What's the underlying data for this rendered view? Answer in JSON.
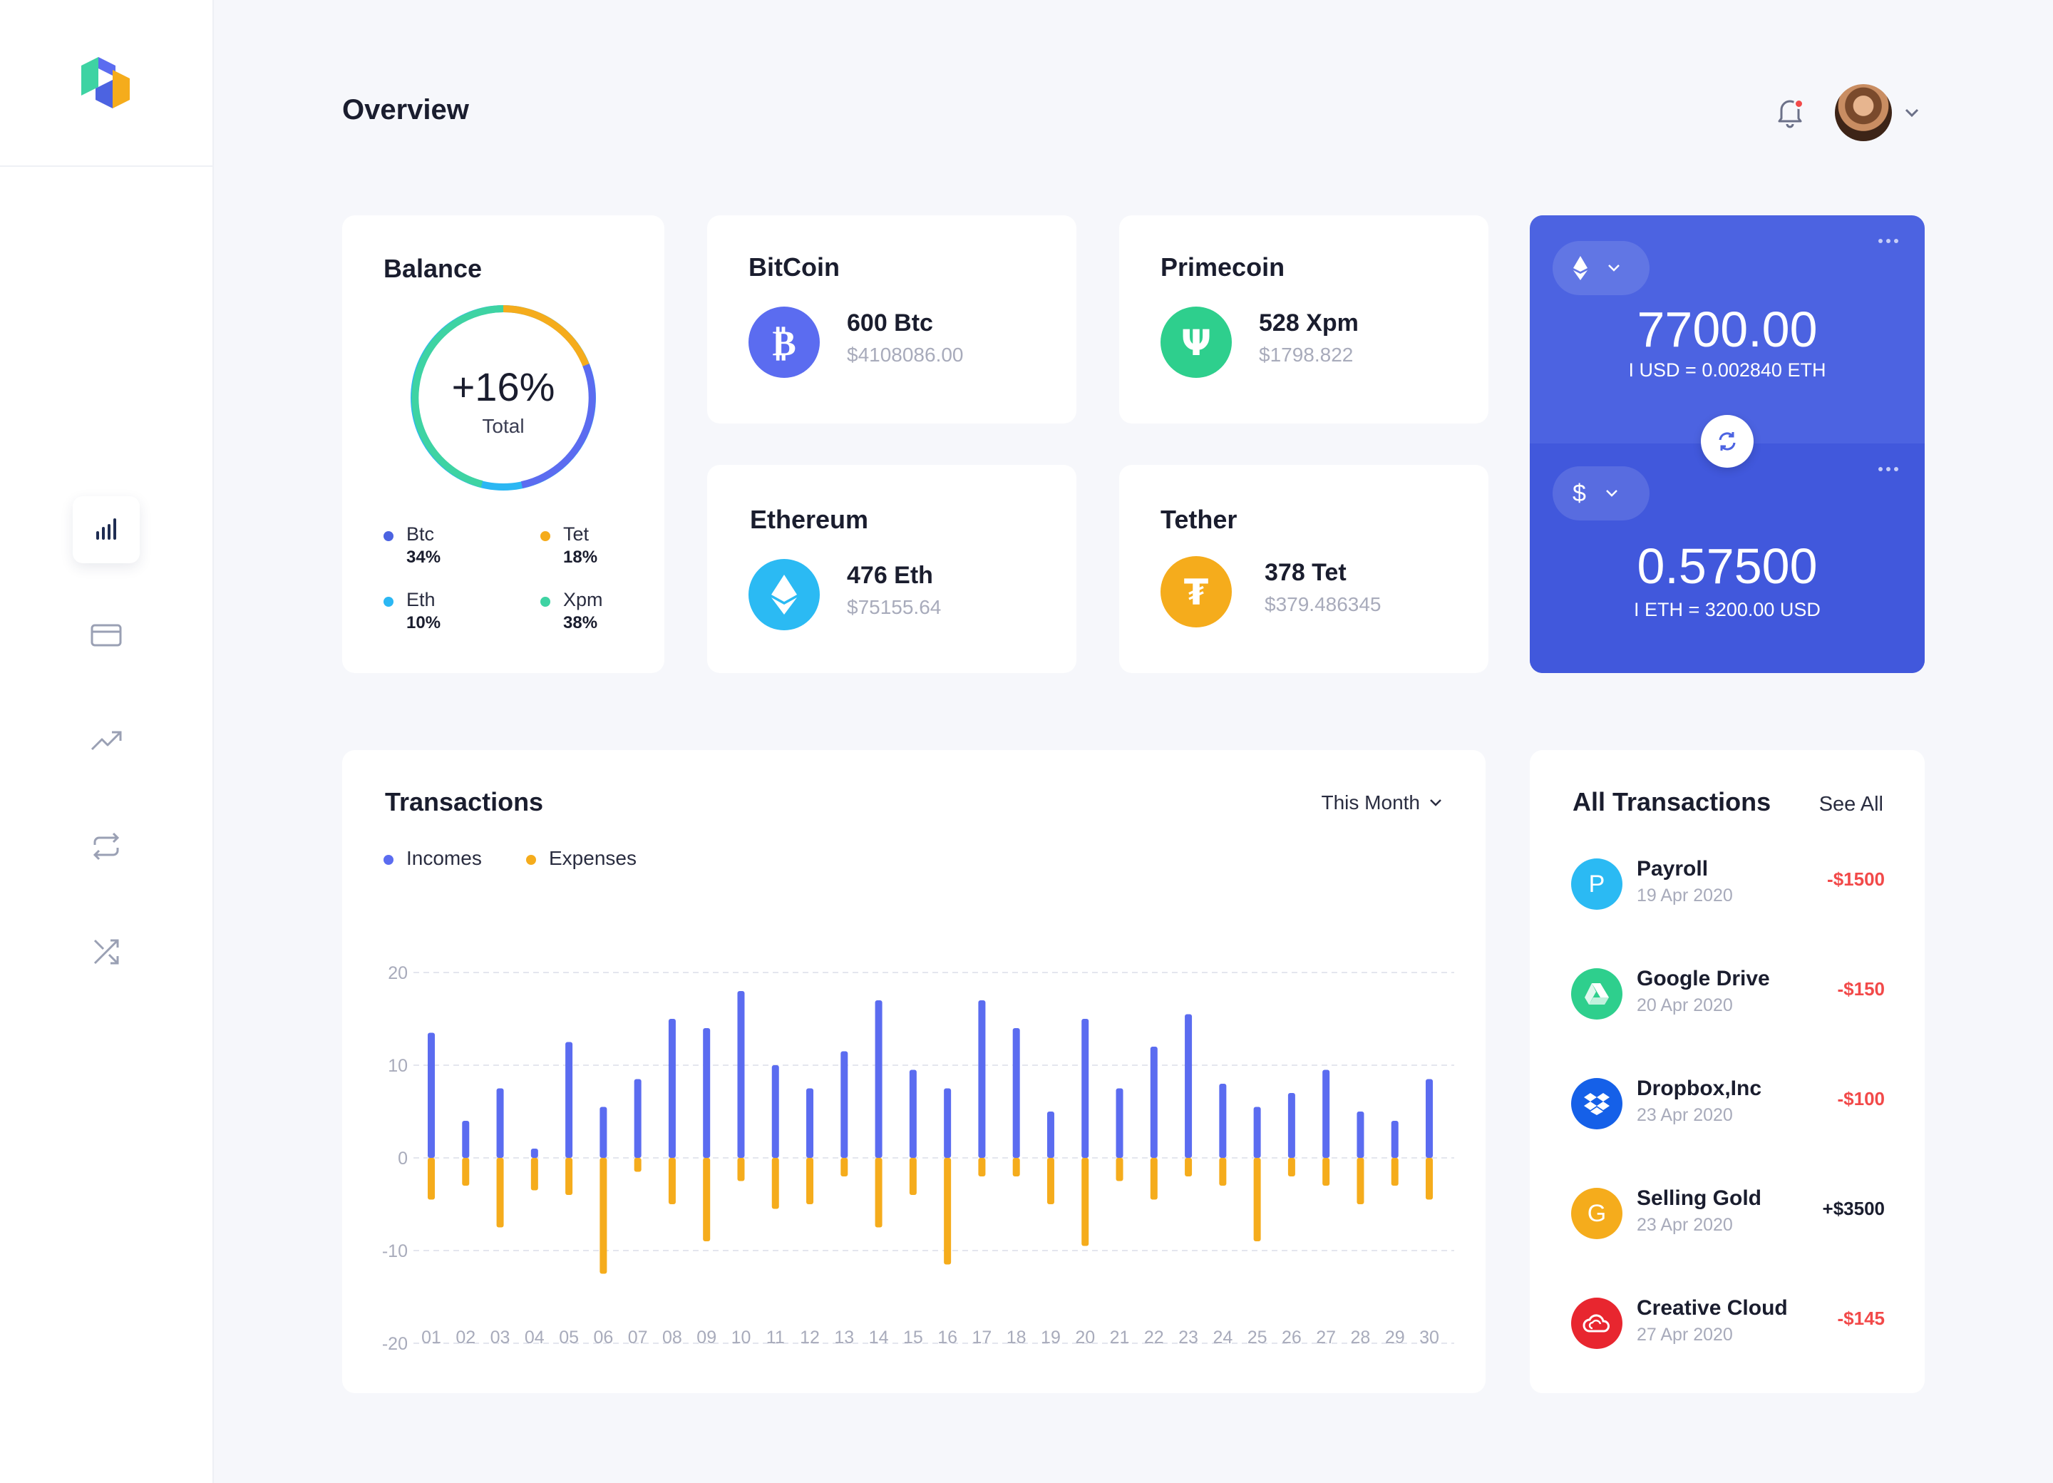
{
  "header": {
    "title": "Overview"
  },
  "balance": {
    "title": "Balance",
    "pct": "+16%",
    "total_label": "Total",
    "legend": [
      {
        "name": "Btc",
        "pct": "34%",
        "color": "#4c63e1"
      },
      {
        "name": "Tet",
        "pct": "18%",
        "color": "#f5ac1c"
      },
      {
        "name": "Eth",
        "pct": "10%",
        "color": "#2bb7f3"
      },
      {
        "name": "Xpm",
        "pct": "38%",
        "color": "#3ed3a3"
      }
    ]
  },
  "coins": [
    {
      "title": "BitCoin",
      "amount": "600 Btc",
      "usd": "$4108086.00",
      "icon": "bitcoin-icon",
      "color": "#5b6cf0"
    },
    {
      "title": "Primecoin",
      "amount": "528 Xpm",
      "usd": "$1798.822",
      "icon": "primecoin-icon",
      "color": "#2ecf8d"
    },
    {
      "title": "Ethereum",
      "amount": "476 Eth",
      "usd": "$75155.64",
      "icon": "ethereum-icon",
      "color": "#2bbaf3"
    },
    {
      "title": "Tether",
      "amount": "378 Tet",
      "usd": "$379.486345",
      "icon": "tether-icon",
      "color": "#f5ac1c"
    }
  ],
  "converter": {
    "top": {
      "currency_icon": "ethereum-icon",
      "value": "7700.00",
      "rate": "I USD = 0.002840 ETH"
    },
    "bottom": {
      "currency_symbol": "$",
      "value": "0.57500",
      "rate": "I ETH = 3200.00 USD"
    }
  },
  "transactions": {
    "title": "Transactions",
    "filter": "This Month",
    "legend": {
      "incomes": "Incomes",
      "expenses": "Expenses"
    }
  },
  "chart_data": {
    "type": "bar",
    "x": [
      "01",
      "02",
      "03",
      "04",
      "05",
      "06",
      "07",
      "08",
      "09",
      "10",
      "11",
      "12",
      "13",
      "14",
      "15",
      "16",
      "17",
      "18",
      "19",
      "20",
      "21",
      "22",
      "23",
      "24",
      "25",
      "26",
      "27",
      "28",
      "29",
      "30"
    ],
    "ylim": [
      -20,
      20
    ],
    "yticks": [
      "20",
      "10",
      "0",
      "-10",
      "-20"
    ],
    "series": [
      {
        "name": "Incomes",
        "color": "#5b6cf0",
        "values": [
          13.5,
          4,
          7.5,
          1,
          12.5,
          5.5,
          8.5,
          15,
          14,
          18,
          10,
          7.5,
          11.5,
          17,
          9.5,
          7.5,
          17,
          14,
          5,
          15,
          7.5,
          12,
          15.5,
          8,
          5.5,
          7,
          9.5,
          5,
          4,
          8.5
        ]
      },
      {
        "name": "Expenses",
        "color": "#f5ac1c",
        "values": [
          -4.5,
          -3,
          -7.5,
          -3.5,
          -4,
          -12.5,
          -1.5,
          -5,
          -9,
          -2.5,
          -5.5,
          -5,
          -2,
          -7.5,
          -4,
          -11.5,
          -2,
          -2,
          -5,
          -9.5,
          -2.5,
          -4.5,
          -2,
          -3,
          -9,
          -2,
          -3,
          -5,
          -3,
          -4.5
        ]
      }
    ],
    "grid": true,
    "legend_position": "top-left"
  },
  "all_transactions": {
    "title": "All Transactions",
    "see_all": "See All",
    "items": [
      {
        "name": "Payroll",
        "date": "19 Apr 2020",
        "amount": "-$1500",
        "icon": "P",
        "color": "#2bbaf3"
      },
      {
        "name": "Google Drive",
        "date": "20 Apr 2020",
        "amount": "-$150",
        "icon": "google-drive-icon",
        "color": "#2ecf8d"
      },
      {
        "name": "Dropbox,Inc",
        "date": "23 Apr 2020",
        "amount": "-$100",
        "icon": "dropbox-icon",
        "color": "#1560e8"
      },
      {
        "name": "Selling Gold",
        "date": "23 Apr 2020",
        "amount": "+$3500",
        "icon": "G",
        "color": "#f5ac1c"
      },
      {
        "name": "Creative Cloud",
        "date": "27 Apr 2020",
        "amount": "-$145",
        "icon": "creative-cloud-icon",
        "color": "#e8262f"
      }
    ]
  },
  "colors": {
    "negative": "#f24949",
    "positive": "#1a1d2e",
    "accent": "#4c63e1"
  }
}
